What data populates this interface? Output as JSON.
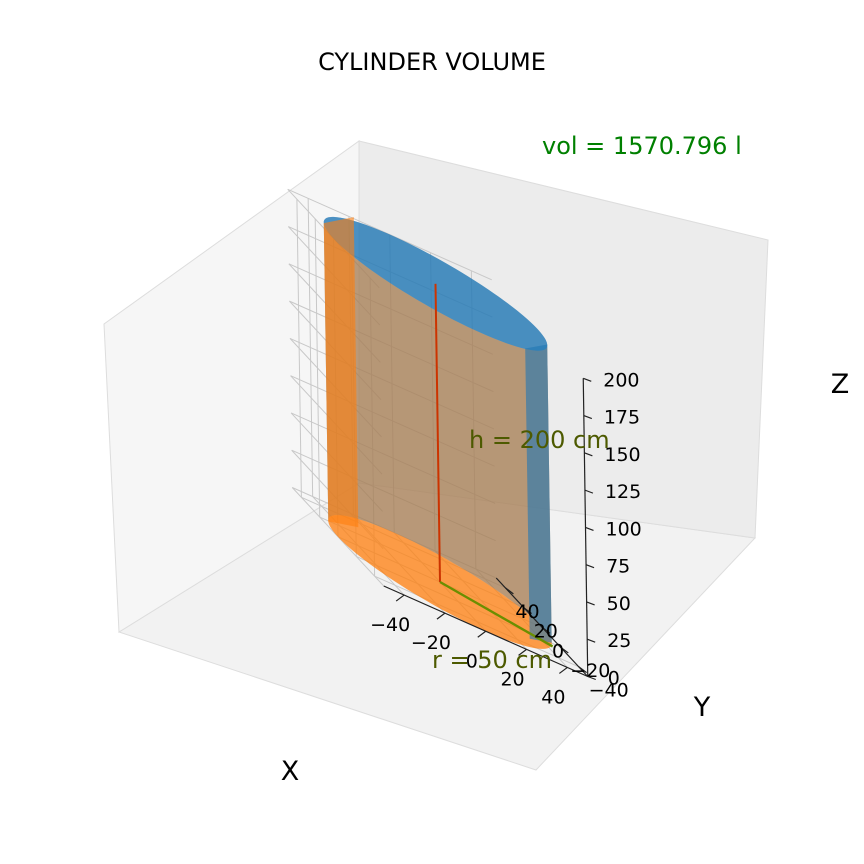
{
  "chart_data": {
    "type": "surface3d",
    "title": "CYLINDER VOLUME",
    "xlabel": "X",
    "ylabel": "Y",
    "zlabel": "Z",
    "xlim": [
      -50,
      50
    ],
    "ylim": [
      -50,
      50
    ],
    "zlim": [
      0,
      200
    ],
    "xticks": [
      "−40",
      "−20",
      "0",
      "20",
      "40"
    ],
    "yticks": [
      "−40",
      "−20",
      "0",
      "20",
      "40"
    ],
    "zticks": [
      "0",
      "25",
      "50",
      "75",
      "100",
      "125",
      "150",
      "175",
      "200"
    ],
    "grid": true,
    "cylinder": {
      "radius": 50,
      "height": 200,
      "unit": "cm"
    },
    "annotations": {
      "volume": "vol = 1570.796 l",
      "height": "h = 200 cm",
      "radius": "r = 50 cm"
    },
    "colors": {
      "front_surface": "#ff7f0e",
      "back_surface": "#1f77b4",
      "volume_text": "#008000",
      "dimension_text": "#4d5a00",
      "height_line": "#cc3300",
      "radius_line": "#6b8e00"
    }
  }
}
